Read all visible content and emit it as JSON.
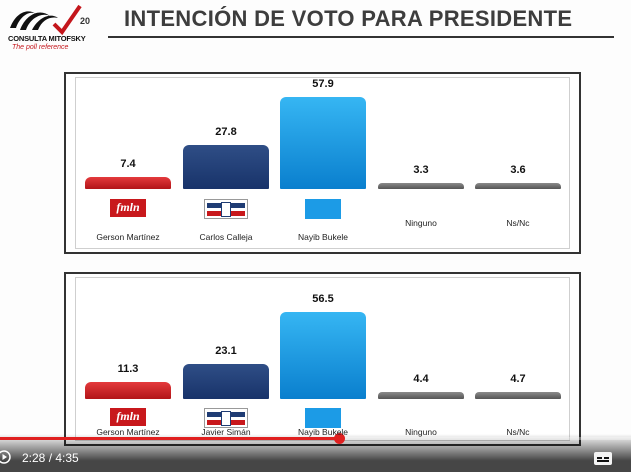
{
  "header": {
    "logo_name": "CONSULTA MITOFSKY",
    "logo_tagline": "The poll reference",
    "logo_anniversary": "20",
    "title": "INTENCIÓN DE VOTO PARA PRESIDENTE"
  },
  "colors": {
    "fmln": "#c8181c",
    "arena": "#1f3c74",
    "gana": "#1c9be6",
    "ninguno": "#6e6e6e",
    "nsnc": "#6e6e6e"
  },
  "chart_data": [
    {
      "type": "bar",
      "categories": [
        "Gerson Martínez",
        "Carlos Calleja",
        "Nayib Bukele",
        "Ninguno",
        "Ns/Nc"
      ],
      "values": [
        7.4,
        27.8,
        57.9,
        3.3,
        3.6
      ],
      "value_labels": [
        "7.4",
        "27.8",
        "57.9",
        "3.3",
        "3.6"
      ],
      "party_logos": [
        "fmln-logo",
        "arena-logo",
        "gana-logo",
        "",
        ""
      ],
      "ylim": [
        0,
        60
      ],
      "grid": false
    },
    {
      "type": "bar",
      "categories": [
        "Gerson Martínez",
        "Javier Simán",
        "Nayib Bukele",
        "Ninguno",
        "Ns/Nc"
      ],
      "values": [
        11.3,
        23.1,
        56.5,
        4.4,
        4.7
      ],
      "value_labels": [
        "11.3",
        "23.1",
        "56.5",
        "4.4",
        "4.7"
      ],
      "party_logos": [
        "fmln-logo",
        "arena-logo",
        "gana-logo",
        "",
        ""
      ],
      "ylim": [
        0,
        60
      ],
      "grid": false
    }
  ],
  "player": {
    "time_display": "2:28 / 4:35",
    "progress_fraction": 0.538,
    "play_icon": "play-icon",
    "captions_icon": "captions-icon"
  }
}
